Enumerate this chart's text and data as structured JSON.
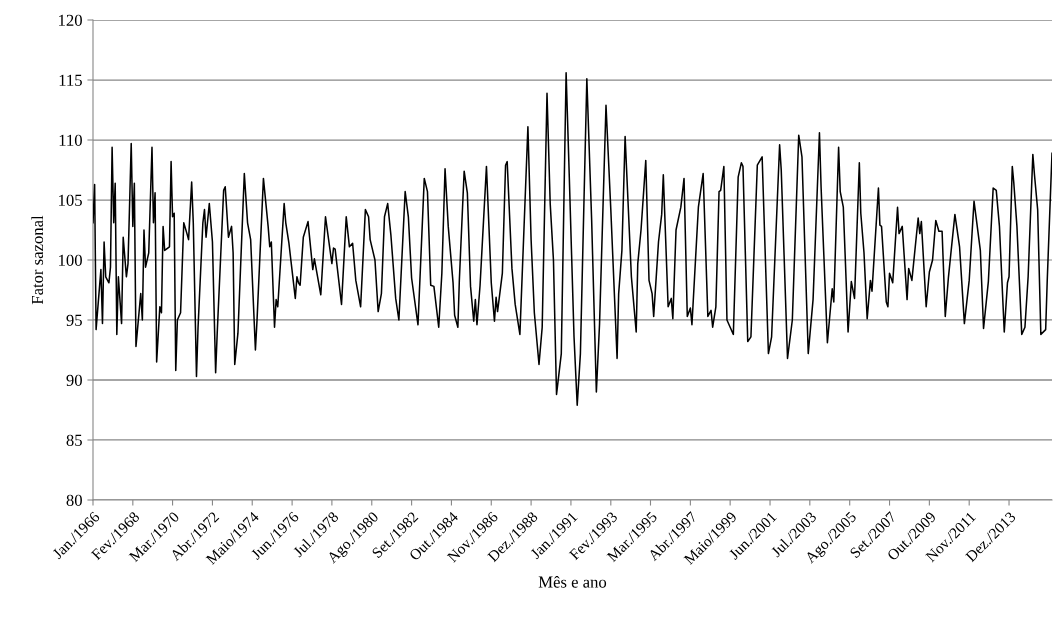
{
  "chart_data": {
    "type": "line",
    "xlabel": "Mês e ano",
    "ylabel": "Fator sazonal",
    "color": "#000000",
    "x": [
      "1966-01",
      "1966-02",
      "1966-03",
      "1966-06",
      "1966-07",
      "1966-08",
      "1966-09",
      "1966-11",
      "1966-12",
      "1967-01",
      "1967-02",
      "1967-03",
      "1967-04",
      "1967-05",
      "1967-07",
      "1967-08",
      "1967-10",
      "1967-11",
      "1968-01",
      "1968-02",
      "1968-03",
      "1968-04",
      "1968-07",
      "1968-08",
      "1968-09",
      "1968-10",
      "1968-12",
      "1969-02",
      "1969-03",
      "1969-04",
      "1969-05",
      "1969-07",
      "1969-08",
      "1969-09",
      "1969-10",
      "1970-01",
      "1970-02",
      "1970-03",
      "1970-04",
      "1970-05",
      "1970-06",
      "1970-08",
      "1970-10",
      "1970-12",
      "1971-01",
      "1971-03",
      "1971-04",
      "1971-06",
      "1971-07",
      "1971-10",
      "1971-11",
      "1971-12",
      "1972-02",
      "1972-04",
      "1972-06",
      "1972-07",
      "1972-11",
      "1972-12",
      "1973-02",
      "1973-04",
      "1973-05",
      "1973-06",
      "1973-08",
      "1973-12",
      "1974-02",
      "1974-04",
      "1974-07",
      "1974-08",
      "1974-12",
      "1975-03",
      "1975-04",
      "1975-05",
      "1975-07",
      "1975-08",
      "1975-09",
      "1976-01",
      "1976-02",
      "1976-04",
      "1976-08",
      "1976-09",
      "1976-10",
      "1976-11",
      "1977-01",
      "1977-04",
      "1977-07",
      "1977-08",
      "1977-12",
      "1978-03",
      "1978-07",
      "1978-08",
      "1978-09",
      "1979-01",
      "1979-04",
      "1979-06",
      "1979-08",
      "1979-10",
      "1980-01",
      "1980-04",
      "1980-06",
      "1980-07",
      "1980-10",
      "1980-12",
      "1981-02",
      "1981-04",
      "1981-06",
      "1981-08",
      "1981-11",
      "1982-01",
      "1982-05",
      "1982-07",
      "1982-09",
      "1983-01",
      "1983-05",
      "1983-07",
      "1983-09",
      "1983-11",
      "1984-02",
      "1984-04",
      "1984-06",
      "1984-08",
      "1984-11",
      "1984-12",
      "1985-02",
      "1985-03",
      "1985-06",
      "1985-08",
      "1985-10",
      "1985-12",
      "1986-01",
      "1986-02",
      "1986-04",
      "1986-08",
      "1986-11",
      "1987-01",
      "1987-02",
      "1987-03",
      "1987-06",
      "1987-08",
      "1987-09",
      "1987-12",
      "1988-02",
      "1988-05",
      "1988-10",
      "1988-12",
      "1989-02",
      "1989-05",
      "1989-07",
      "1989-10",
      "1989-12",
      "1990-02",
      "1990-04",
      "1990-07",
      "1990-10",
      "1990-12",
      "1991-03",
      "1991-05",
      "1991-07",
      "1991-11",
      "1992-02",
      "1992-05",
      "1992-07",
      "1992-11",
      "1993-02",
      "1993-06",
      "1993-07",
      "1993-09",
      "1993-11",
      "1994-03",
      "1994-06",
      "1994-07",
      "1994-09",
      "1994-12",
      "1995-02",
      "1995-04",
      "1995-05",
      "1995-08",
      "1995-10",
      "1995-11",
      "1996-02",
      "1996-04",
      "1996-05",
      "1996-07",
      "1996-10",
      "1996-12",
      "1997-02",
      "1997-04",
      "1997-05",
      "1997-09",
      "1997-12",
      "1998-03",
      "1998-05",
      "1998-06",
      "1998-08",
      "1998-10",
      "1998-11",
      "1999-01",
      "1999-03",
      "1999-05",
      "1999-07",
      "1999-10",
      "1999-12",
      "2000-01",
      "2000-04",
      "2000-06",
      "2000-10",
      "2001-01",
      "2001-05",
      "2001-07",
      "2001-12",
      "2002-01",
      "2002-05",
      "2002-08",
      "2002-12",
      "2003-02",
      "2003-06",
      "2003-09",
      "2004-01",
      "2004-02",
      "2004-06",
      "2004-09",
      "2004-10",
      "2005-01",
      "2005-02",
      "2005-04",
      "2005-07",
      "2005-09",
      "2005-11",
      "2006-02",
      "2006-03",
      "2006-05",
      "2006-07",
      "2006-09",
      "2006-10",
      "2007-02",
      "2007-03",
      "2007-04",
      "2007-07",
      "2007-08",
      "2007-09",
      "2007-11",
      "2008-02",
      "2008-03",
      "2008-05",
      "2008-08",
      "2008-09",
      "2008-11",
      "2009-03",
      "2009-04",
      "2009-05",
      "2009-08",
      "2009-10",
      "2009-12",
      "2010-02",
      "2010-04",
      "2010-06",
      "2010-08",
      "2010-10",
      "2011-02",
      "2011-05",
      "2011-08",
      "2011-11",
      "2012-02",
      "2012-06",
      "2012-08",
      "2012-11",
      "2013-02",
      "2013-04",
      "2013-06",
      "2013-09",
      "2013-11",
      "2013-12",
      "2014-02",
      "2014-03",
      "2014-05",
      "2014-08",
      "2014-10",
      "2014-12",
      "2015-03",
      "2015-04",
      "2015-06",
      "2015-08",
      "2015-11",
      "2015-12",
      "2016-03"
    ],
    "values": [
      103.1,
      106.3,
      94.2,
      99.2,
      94.7,
      101.5,
      98.6,
      98.1,
      99.4,
      109.4,
      103.1,
      106.4,
      93.8,
      98.6,
      94.7,
      101.9,
      98.6,
      99.7,
      109.7,
      102.8,
      106.4,
      92.8,
      97.2,
      95.0,
      102.5,
      99.4,
      100.6,
      109.4,
      103.1,
      105.6,
      91.5,
      96.1,
      95.6,
      102.8,
      100.8,
      101.1,
      108.2,
      103.6,
      103.9,
      90.8,
      95.0,
      95.6,
      103.1,
      102.2,
      101.7,
      106.5,
      103.1,
      90.3,
      94.4,
      103.1,
      104.2,
      101.9,
      104.7,
      101.5,
      90.6,
      93.9,
      105.8,
      106.1,
      101.9,
      102.8,
      100.6,
      91.3,
      93.9,
      107.2,
      103.1,
      101.7,
      92.5,
      95.0,
      106.8,
      102.8,
      101.1,
      101.5,
      94.4,
      96.7,
      96.1,
      104.7,
      103.1,
      101.4,
      96.8,
      98.6,
      98.1,
      97.9,
      101.9,
      103.2,
      99.2,
      100.1,
      97.1,
      103.6,
      99.7,
      101.0,
      100.9,
      96.3,
      103.6,
      101.1,
      101.4,
      98.3,
      96.1,
      104.2,
      103.6,
      101.7,
      100.0,
      95.7,
      97.2,
      103.6,
      104.7,
      102.1,
      96.8,
      95.0,
      105.7,
      103.6,
      98.5,
      94.6,
      106.8,
      105.7,
      97.9,
      97.8,
      94.4,
      98.9,
      107.6,
      102.8,
      98.1,
      95.4,
      94.4,
      98.3,
      107.4,
      105.6,
      97.8,
      94.9,
      96.7,
      94.6,
      97.9,
      107.8,
      98.1,
      94.9,
      96.9,
      95.7,
      98.9,
      107.9,
      108.2,
      99.3,
      96.3,
      93.8,
      111.1,
      101.7,
      95.6,
      91.3,
      94.4,
      113.9,
      104.7,
      100.0,
      88.8,
      92.2,
      115.6,
      106.9,
      93.6,
      87.9,
      92.2,
      115.1,
      103.3,
      89.0,
      94.7,
      112.9,
      104.2,
      91.8,
      97.2,
      100.8,
      110.3,
      98.6,
      94.0,
      99.7,
      102.5,
      108.3,
      98.3,
      97.2,
      95.3,
      101.5,
      103.8,
      107.1,
      96.1,
      96.8,
      95.1,
      102.5,
      104.4,
      106.8,
      95.3,
      96.0,
      94.6,
      104.4,
      107.2,
      95.3,
      95.8,
      94.4,
      96.1,
      105.7,
      105.8,
      107.8,
      95.0,
      94.4,
      93.8,
      106.9,
      108.1,
      107.8,
      93.2,
      93.6,
      107.9,
      108.6,
      92.2,
      93.6,
      109.6,
      107.5,
      91.8,
      95.0,
      110.4,
      108.6,
      92.2,
      96.7,
      110.6,
      106.1,
      93.1,
      97.6,
      96.5,
      109.4,
      105.7,
      104.4,
      94.0,
      98.2,
      96.8,
      108.1,
      103.9,
      100.6,
      95.1,
      98.3,
      97.4,
      106.0,
      102.9,
      102.8,
      96.5,
      96.1,
      98.9,
      98.1,
      104.4,
      102.2,
      102.8,
      96.7,
      99.3,
      98.3,
      103.5,
      102.2,
      103.2,
      96.1,
      99.0,
      100.0,
      103.3,
      102.4,
      102.4,
      95.3,
      98.6,
      103.8,
      101.1,
      94.7,
      98.3,
      104.9,
      100.8,
      94.3,
      98.2,
      106.0,
      105.8,
      102.8,
      94.0,
      98.1,
      98.6,
      107.8,
      106.5,
      102.8,
      93.8,
      94.4,
      98.6,
      108.8,
      107.1,
      104.2,
      93.8,
      94.2,
      98.3,
      108.9
    ],
    "xlim": [
      "1966-01",
      "2016-03"
    ],
    "xticks": [
      {
        "value": "1966-01",
        "label": "Jan./1966"
      },
      {
        "value": "1968-02",
        "label": "Fev./1968"
      },
      {
        "value": "1970-03",
        "label": "Mar./1970"
      },
      {
        "value": "1972-04",
        "label": "Abr./1972"
      },
      {
        "value": "1974-05",
        "label": "Maio/1974"
      },
      {
        "value": "1976-06",
        "label": "Jun./1976"
      },
      {
        "value": "1978-07",
        "label": "Jul./1978"
      },
      {
        "value": "1980-08",
        "label": "Ago./1980"
      },
      {
        "value": "1982-09",
        "label": "Set./1982"
      },
      {
        "value": "1984-10",
        "label": "Out./1984"
      },
      {
        "value": "1986-11",
        "label": "Nov./1986"
      },
      {
        "value": "1988-12",
        "label": "Dez./1988"
      },
      {
        "value": "1991-01",
        "label": "Jan./1991"
      },
      {
        "value": "1993-02",
        "label": "Fev./1993"
      },
      {
        "value": "1995-03",
        "label": "Mar./1995"
      },
      {
        "value": "1997-04",
        "label": "Abr./1997"
      },
      {
        "value": "1999-05",
        "label": "Maio/1999"
      },
      {
        "value": "2001-06",
        "label": "Jun./2001"
      },
      {
        "value": "2003-07",
        "label": "Jul./2003"
      },
      {
        "value": "2005-08",
        "label": "Ago./2005"
      },
      {
        "value": "2007-09",
        "label": "Set./2007"
      },
      {
        "value": "2009-10",
        "label": "Out./2009"
      },
      {
        "value": "2011-11",
        "label": "Nov./2011"
      },
      {
        "value": "2013-12",
        "label": "Dez./2013"
      }
    ],
    "ylim": [
      80,
      120
    ],
    "yticks": [
      80,
      85,
      90,
      95,
      100,
      105,
      110,
      115,
      120
    ],
    "grid": "y"
  }
}
